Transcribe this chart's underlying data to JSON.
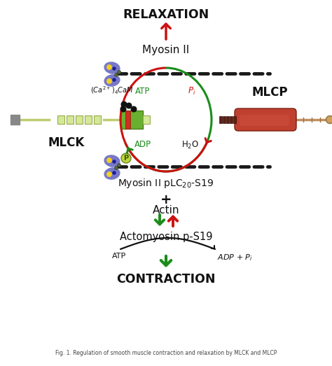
{
  "bg_color": "#ffffff",
  "green": "#1a8c1a",
  "red": "#cc1111",
  "black": "#111111",
  "gray": "#666666",
  "relaxation_text": "RELAXATION",
  "contraction_text": "CONTRACTION",
  "myosin2_text": "Myosin II",
  "myosin2_plc_text": "Myosin II pLC$_{20}$-S19",
  "actomyosin_text": "Actomyosin p-S19",
  "actin_text": "Actin",
  "mlck_text": "MLCK",
  "mlcp_text": "MLCP",
  "cam_label": "$(Ca^{2+})_4CaM$",
  "atp_text": "ATP",
  "adp_text": "ADP",
  "pi_text": "$P_i$",
  "h2o_text": "H$_2$O",
  "plus_text": "+",
  "fig_caption": "Fig. 1. Regulation of smooth muscle contraction and relaxation by MLCK and MLCP"
}
